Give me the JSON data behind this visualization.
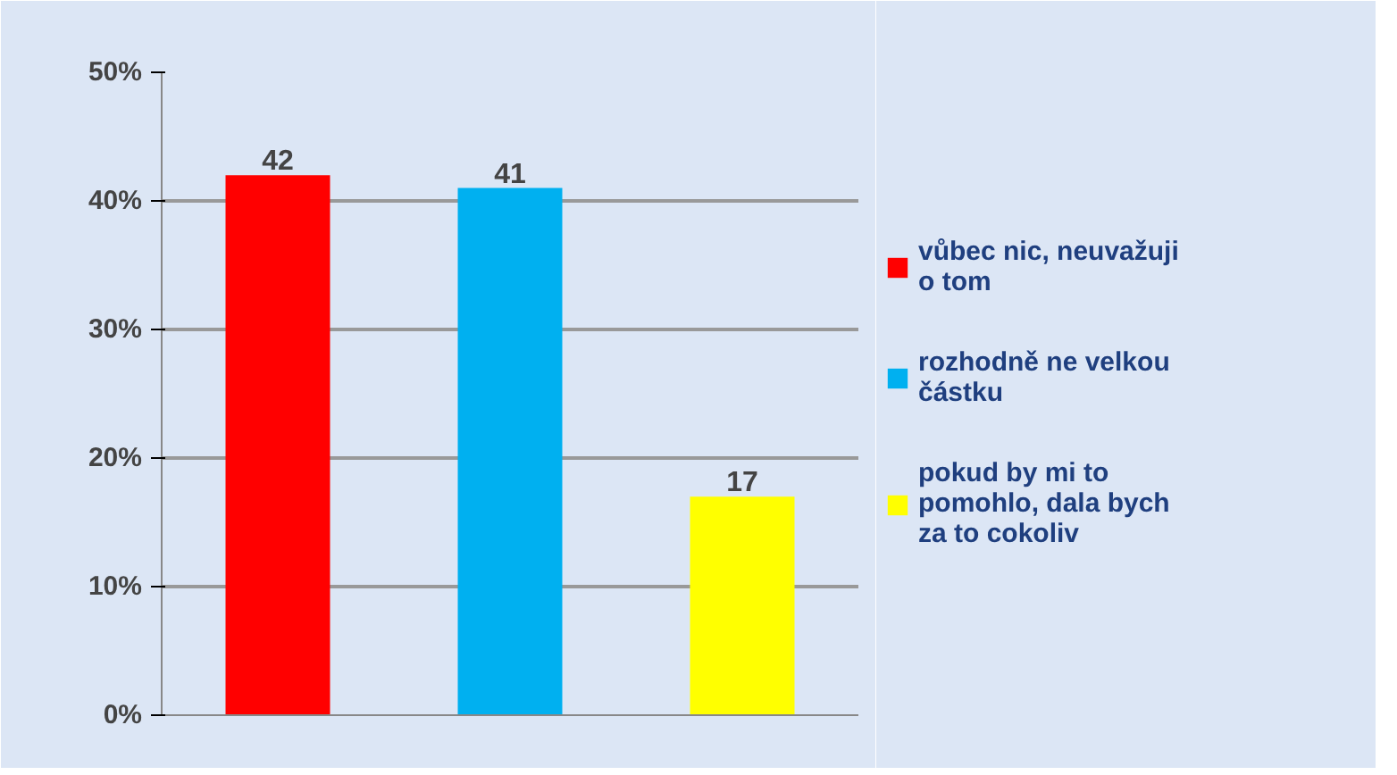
{
  "chart_data": {
    "type": "bar",
    "categories": [
      null,
      null,
      null
    ],
    "series": [
      {
        "name": "vůbec nic, neuvažuji o tom",
        "color": "#ff0000",
        "values": [
          42,
          null,
          null
        ]
      },
      {
        "name": "rozhodně ne velkou částku",
        "color": "#00b0f0",
        "values": [
          null,
          41,
          null
        ]
      },
      {
        "name": "pokud by mi to pomohlo, dala bych za to cokoliv",
        "color": "#ffff00",
        "values": [
          null,
          null,
          17
        ]
      }
    ],
    "ylim": [
      0,
      50
    ],
    "yticks": [
      {
        "value": 0,
        "label": "0%"
      },
      {
        "value": 10,
        "label": "10%"
      },
      {
        "value": 20,
        "label": "20%"
      },
      {
        "value": 30,
        "label": "30%"
      },
      {
        "value": 40,
        "label": "40%"
      },
      {
        "value": 50,
        "label": "50%"
      }
    ],
    "data_labels": true,
    "grid": "y",
    "legend": "right"
  }
}
